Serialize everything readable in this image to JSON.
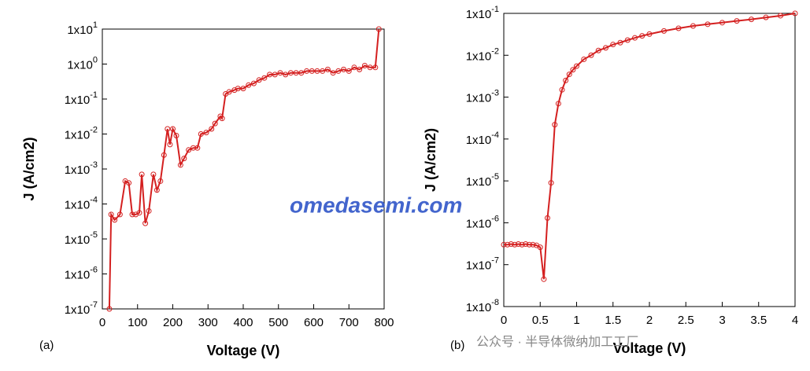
{
  "annotations": [
    "(a)",
    "(b)",
    "omedasemi.com",
    "公众号 · 半导体微纳加工工厂"
  ],
  "chart_data": [
    {
      "type": "line",
      "xlabel": "Voltage (V)",
      "ylabel": "J (A/cm2)",
      "log_y": true,
      "markers": true,
      "xlim": [
        0,
        800
      ],
      "xticks": [
        0,
        100,
        200,
        300,
        400,
        500,
        600,
        700,
        800
      ],
      "ylim": [
        1e-07,
        10
      ],
      "yticks": [
        {
          "value": 1e-07,
          "label": "1x10-7"
        },
        {
          "value": 1e-06,
          "label": "1x10-6"
        },
        {
          "value": 1e-05,
          "label": "1x10-5"
        },
        {
          "value": 0.0001,
          "label": "1x10-4"
        },
        {
          "value": 0.001,
          "label": "1x10-3"
        },
        {
          "value": 0.01,
          "label": "1x10-2"
        },
        {
          "value": 0.1,
          "label": "1x10-1"
        },
        {
          "value": 1,
          "label": "1x100"
        },
        {
          "value": 10,
          "label": "1x101"
        }
      ],
      "series": [
        {
          "color": "#d42020",
          "x": [
            20,
            25,
            35,
            50,
            65,
            75,
            85,
            95,
            105,
            112,
            122,
            132,
            145,
            155,
            165,
            175,
            185,
            192,
            200,
            210,
            222,
            232,
            245,
            258,
            270,
            280,
            295,
            310,
            320,
            335,
            340,
            350,
            360,
            375,
            385,
            400,
            415,
            430,
            445,
            460,
            475,
            490,
            505,
            520,
            535,
            550,
            565,
            580,
            595,
            610,
            625,
            640,
            655,
            670,
            685,
            700,
            715,
            730,
            745,
            760,
            775,
            785
          ],
          "values": [
            1e-07,
            5e-05,
            3.5e-05,
            5e-05,
            0.00045,
            0.0004,
            5e-05,
            5e-05,
            5.6e-05,
            0.0007,
            2.8e-05,
            6.3e-05,
            0.0007,
            0.00025,
            0.00045,
            0.0025,
            0.014,
            0.005,
            0.014,
            0.009,
            0.0013,
            0.002,
            0.0035,
            0.004,
            0.004,
            0.01,
            0.011,
            0.014,
            0.02,
            0.032,
            0.028,
            0.14,
            0.16,
            0.18,
            0.2,
            0.2,
            0.25,
            0.28,
            0.35,
            0.4,
            0.5,
            0.5,
            0.56,
            0.5,
            0.56,
            0.56,
            0.56,
            0.63,
            0.63,
            0.63,
            0.63,
            0.7,
            0.56,
            0.63,
            0.7,
            0.63,
            0.8,
            0.7,
            0.9,
            0.8,
            0.8,
            10
          ]
        }
      ]
    },
    {
      "type": "line",
      "xlabel": "Voltage (V)",
      "ylabel": "J (A/cm2)",
      "log_y": true,
      "markers": true,
      "xlim": [
        0,
        4
      ],
      "xticks": [
        0,
        0.5,
        1,
        1.5,
        2,
        2.5,
        3,
        3.5,
        4
      ],
      "ylim": [
        1e-08,
        0.1
      ],
      "yticks": [
        {
          "value": 1e-08,
          "label": "1x10-8"
        },
        {
          "value": 1e-07,
          "label": "1x10-7"
        },
        {
          "value": 1e-06,
          "label": "1x10-6"
        },
        {
          "value": 1e-05,
          "label": "1x10-5"
        },
        {
          "value": 0.0001,
          "label": "1x10-4"
        },
        {
          "value": 0.001,
          "label": "1x10-3"
        },
        {
          "value": 0.01,
          "label": "1x10-2"
        },
        {
          "value": 0.1,
          "label": "1x10-1"
        }
      ],
      "series": [
        {
          "color": "#d42020",
          "x": [
            0,
            0.05,
            0.1,
            0.15,
            0.2,
            0.25,
            0.3,
            0.35,
            0.4,
            0.45,
            0.5,
            0.55,
            0.6,
            0.65,
            0.7,
            0.75,
            0.8,
            0.85,
            0.9,
            0.95,
            1.0,
            1.1,
            1.2,
            1.3,
            1.4,
            1.5,
            1.6,
            1.7,
            1.8,
            1.9,
            2.0,
            2.2,
            2.4,
            2.6,
            2.8,
            3.0,
            3.2,
            3.4,
            3.6,
            3.8,
            4.0
          ],
          "values": [
            3e-07,
            3e-07,
            3.1e-07,
            3e-07,
            3.1e-07,
            3e-07,
            3.1e-07,
            3e-07,
            3e-07,
            2.9e-07,
            2.6e-07,
            4.5e-08,
            1.3e-06,
            9e-06,
            0.00022,
            0.0007,
            0.0015,
            0.0025,
            0.0035,
            0.0045,
            0.0055,
            0.008,
            0.01,
            0.013,
            0.015,
            0.018,
            0.02,
            0.023,
            0.026,
            0.029,
            0.032,
            0.038,
            0.044,
            0.05,
            0.055,
            0.06,
            0.066,
            0.072,
            0.08,
            0.088,
            0.1
          ]
        }
      ]
    }
  ]
}
